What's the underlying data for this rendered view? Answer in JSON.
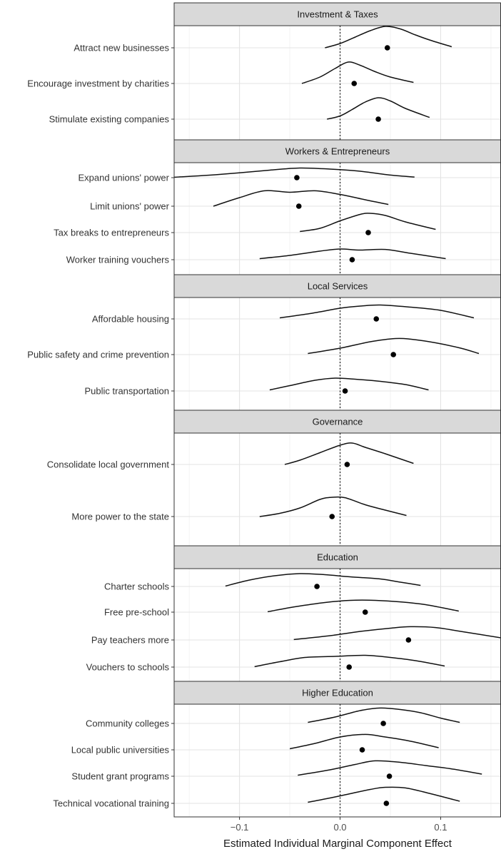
{
  "chart_data": {
    "type": "ridgeline-dotplot",
    "xlabel": "Estimated Individual Marginal Component Effect",
    "xlim": [
      -0.165,
      0.16
    ],
    "xticks": [
      {
        "value": -0.1,
        "label": "−0.1"
      },
      {
        "value": 0.0,
        "label": "0.0"
      },
      {
        "value": 0.1,
        "label": "0.1"
      }
    ],
    "minor_grid": [
      -0.15,
      -0.05,
      0.05,
      0.15
    ],
    "reference_line": 0.0,
    "grid": true,
    "facets": [
      {
        "title": "Investment & Taxes",
        "items": [
          {
            "label": "Attract new businesses",
            "point": 0.047,
            "density": [
              [
                -0.015,
                0
              ],
              [
                0,
                0.2
              ],
              [
                0.015,
                0.5
              ],
              [
                0.03,
                0.8
              ],
              [
                0.045,
                1.0
              ],
              [
                0.06,
                0.88
              ],
              [
                0.075,
                0.6
              ],
              [
                0.09,
                0.35
              ],
              [
                0.111,
                0.05
              ]
            ]
          },
          {
            "label": "Encourage investment by charities",
            "point": 0.014,
            "density": [
              [
                -0.038,
                0
              ],
              [
                -0.02,
                0.3
              ],
              [
                -0.005,
                0.7
              ],
              [
                0.008,
                1.0
              ],
              [
                0.02,
                0.85
              ],
              [
                0.035,
                0.55
              ],
              [
                0.05,
                0.3
              ],
              [
                0.073,
                0.05
              ]
            ]
          },
          {
            "label": "Stimulate existing companies",
            "point": 0.038,
            "density": [
              [
                -0.013,
                0
              ],
              [
                0,
                0.15
              ],
              [
                0.012,
                0.45
              ],
              [
                0.025,
                0.8
              ],
              [
                0.038,
                1.0
              ],
              [
                0.05,
                0.85
              ],
              [
                0.065,
                0.5
              ],
              [
                0.089,
                0.08
              ]
            ]
          }
        ]
      },
      {
        "title": "Workers & Entrepreneurs",
        "items": [
          {
            "label": "Expand unions' power",
            "point": -0.043,
            "density": [
              [
                -0.165,
                0.02
              ],
              [
                -0.12,
                0.15
              ],
              [
                -0.07,
                0.35
              ],
              [
                -0.04,
                0.45
              ],
              [
                -0.01,
                0.4
              ],
              [
                0.02,
                0.3
              ],
              [
                0.05,
                0.12
              ],
              [
                0.074,
                0.03
              ]
            ]
          },
          {
            "label": "Limit unions' power",
            "point": -0.041,
            "density": [
              [
                -0.126,
                0
              ],
              [
                -0.1,
                0.4
              ],
              [
                -0.075,
                0.72
              ],
              [
                -0.05,
                0.65
              ],
              [
                -0.025,
                0.72
              ],
              [
                0,
                0.55
              ],
              [
                0.025,
                0.3
              ],
              [
                0.048,
                0.08
              ]
            ]
          },
          {
            "label": "Tax breaks to entrepreneurs",
            "point": 0.028,
            "density": [
              [
                -0.04,
                0.05
              ],
              [
                -0.02,
                0.2
              ],
              [
                0,
                0.55
              ],
              [
                0.02,
                0.85
              ],
              [
                0.03,
                0.9
              ],
              [
                0.045,
                0.8
              ],
              [
                0.065,
                0.5
              ],
              [
                0.095,
                0.15
              ]
            ]
          },
          {
            "label": "Worker training vouchers",
            "point": 0.012,
            "density": [
              [
                -0.08,
                0.05
              ],
              [
                -0.05,
                0.2
              ],
              [
                -0.02,
                0.4
              ],
              [
                0,
                0.5
              ],
              [
                0.02,
                0.45
              ],
              [
                0.045,
                0.48
              ],
              [
                0.07,
                0.3
              ],
              [
                0.105,
                0.05
              ]
            ]
          }
        ]
      },
      {
        "title": "Local Services",
        "items": [
          {
            "label": "Affordable housing",
            "point": 0.036,
            "density": [
              [
                -0.06,
                0.05
              ],
              [
                -0.03,
                0.25
              ],
              [
                0,
                0.5
              ],
              [
                0.02,
                0.6
              ],
              [
                0.04,
                0.65
              ],
              [
                0.07,
                0.55
              ],
              [
                0.1,
                0.4
              ],
              [
                0.133,
                0.05
              ]
            ]
          },
          {
            "label": "Public safety and crime prevention",
            "point": 0.053,
            "density": [
              [
                -0.032,
                0.05
              ],
              [
                0,
                0.3
              ],
              [
                0.03,
                0.6
              ],
              [
                0.055,
                0.75
              ],
              [
                0.07,
                0.72
              ],
              [
                0.095,
                0.55
              ],
              [
                0.12,
                0.3
              ],
              [
                0.138,
                0.05
              ]
            ]
          },
          {
            "label": "Public transportation",
            "point": 0.005,
            "density": [
              [
                -0.07,
                0.05
              ],
              [
                -0.05,
                0.25
              ],
              [
                -0.025,
                0.5
              ],
              [
                -0.005,
                0.6
              ],
              [
                0.015,
                0.55
              ],
              [
                0.04,
                0.45
              ],
              [
                0.065,
                0.3
              ],
              [
                0.088,
                0.05
              ]
            ]
          }
        ]
      },
      {
        "title": "Governance",
        "items": [
          {
            "label": "Consolidate local government",
            "point": 0.007,
            "density": [
              [
                -0.055,
                0
              ],
              [
                -0.04,
                0.2
              ],
              [
                -0.02,
                0.55
              ],
              [
                0,
                0.9
              ],
              [
                0.012,
                1.0
              ],
              [
                0.025,
                0.8
              ],
              [
                0.045,
                0.5
              ],
              [
                0.073,
                0.05
              ]
            ]
          },
          {
            "label": "More power to the state",
            "point": -0.008,
            "density": [
              [
                -0.08,
                0
              ],
              [
                -0.06,
                0.15
              ],
              [
                -0.04,
                0.4
              ],
              [
                -0.02,
                0.8
              ],
              [
                -0.008,
                0.9
              ],
              [
                0.005,
                0.88
              ],
              [
                0.025,
                0.55
              ],
              [
                0.045,
                0.3
              ],
              [
                0.066,
                0.05
              ]
            ]
          }
        ]
      },
      {
        "title": "Education",
        "items": [
          {
            "label": "Charter schools",
            "point": -0.023,
            "density": [
              [
                -0.114,
                0.02
              ],
              [
                -0.09,
                0.3
              ],
              [
                -0.065,
                0.5
              ],
              [
                -0.04,
                0.6
              ],
              [
                -0.015,
                0.55
              ],
              [
                0.01,
                0.45
              ],
              [
                0.04,
                0.35
              ],
              [
                0.06,
                0.2
              ],
              [
                0.08,
                0.05
              ]
            ]
          },
          {
            "label": "Free pre-school",
            "point": 0.025,
            "density": [
              [
                -0.072,
                0.02
              ],
              [
                -0.045,
                0.25
              ],
              [
                -0.015,
                0.45
              ],
              [
                0.01,
                0.55
              ],
              [
                0.035,
                0.55
              ],
              [
                0.06,
                0.48
              ],
              [
                0.085,
                0.35
              ],
              [
                0.118,
                0.05
              ]
            ]
          },
          {
            "label": "Pay teachers more",
            "point": 0.068,
            "density": [
              [
                -0.046,
                0.02
              ],
              [
                -0.01,
                0.2
              ],
              [
                0.02,
                0.4
              ],
              [
                0.05,
                0.55
              ],
              [
                0.07,
                0.62
              ],
              [
                0.095,
                0.58
              ],
              [
                0.12,
                0.4
              ],
              [
                0.16,
                0.1
              ]
            ]
          },
          {
            "label": "Vouchers to schools",
            "point": 0.009,
            "density": [
              [
                -0.085,
                0.02
              ],
              [
                -0.06,
                0.25
              ],
              [
                -0.035,
                0.45
              ],
              [
                -0.005,
                0.5
              ],
              [
                0.025,
                0.55
              ],
              [
                0.05,
                0.45
              ],
              [
                0.075,
                0.3
              ],
              [
                0.104,
                0.05
              ]
            ]
          }
        ]
      },
      {
        "title": "Higher Education",
        "items": [
          {
            "label": "Community colleges",
            "point": 0.043,
            "density": [
              [
                -0.032,
                0.05
              ],
              [
                -0.005,
                0.3
              ],
              [
                0.02,
                0.6
              ],
              [
                0.04,
                0.72
              ],
              [
                0.06,
                0.65
              ],
              [
                0.08,
                0.5
              ],
              [
                0.1,
                0.25
              ],
              [
                0.119,
                0.05
              ]
            ]
          },
          {
            "label": "Local public universities",
            "point": 0.022,
            "density": [
              [
                -0.05,
                0.05
              ],
              [
                -0.025,
                0.3
              ],
              [
                0,
                0.6
              ],
              [
                0.025,
                0.72
              ],
              [
                0.045,
                0.6
              ],
              [
                0.065,
                0.45
              ],
              [
                0.08,
                0.3
              ],
              [
                0.098,
                0.1
              ]
            ]
          },
          {
            "label": "Student grant programs",
            "point": 0.049,
            "density": [
              [
                -0.042,
                0.05
              ],
              [
                -0.01,
                0.3
              ],
              [
                0.015,
                0.55
              ],
              [
                0.035,
                0.72
              ],
              [
                0.06,
                0.65
              ],
              [
                0.085,
                0.5
              ],
              [
                0.11,
                0.35
              ],
              [
                0.141,
                0.1
              ]
            ]
          },
          {
            "label": "Technical vocational training",
            "point": 0.046,
            "density": [
              [
                -0.032,
                0.05
              ],
              [
                -0.01,
                0.25
              ],
              [
                0.01,
                0.45
              ],
              [
                0.03,
                0.65
              ],
              [
                0.045,
                0.75
              ],
              [
                0.065,
                0.72
              ],
              [
                0.09,
                0.45
              ],
              [
                0.119,
                0.1
              ]
            ]
          }
        ]
      }
    ]
  }
}
